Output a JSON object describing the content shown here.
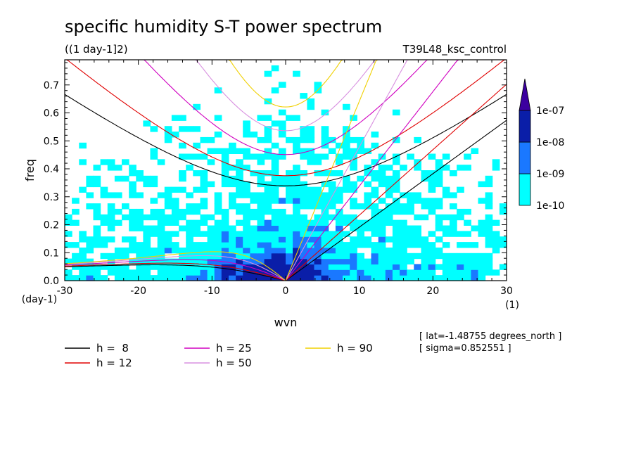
{
  "chart_data": {
    "type": "heatmap",
    "title": "specific humidity S-T power spectrum",
    "units": "((1 day-1]2)",
    "run": "T39L48_ksc_control",
    "xlabel": "wvn",
    "ylabel": "freq",
    "x_unit": "(1)",
    "y_unit": "(day-1)",
    "xlim": [
      -30,
      30
    ],
    "ylim": [
      0,
      0.79
    ],
    "x_ticks": [
      -30,
      -20,
      -10,
      0,
      10,
      20,
      30
    ],
    "x_tick_labels": [
      "-30",
      "-20",
      "-10",
      "0",
      "10",
      "20",
      "30"
    ],
    "y_ticks": [
      0,
      0.1,
      0.2,
      0.3,
      0.4,
      0.5,
      0.6,
      0.7
    ],
    "y_tick_labels": [
      "0.0",
      "0.1",
      "0.2",
      "0.3",
      "0.4",
      "0.5",
      "0.6",
      "0.7"
    ],
    "levels": [
      "1e-10",
      "1e-09",
      "1e-08",
      "1e-07"
    ],
    "level_colors": [
      "#00ffff",
      "#1a78ff",
      "#0a1ea8",
      "#3c00a0"
    ],
    "background_field": {
      "min_class": 0,
      "max_class": 3
    },
    "dispersion_curves": [
      {
        "label": "h =  8",
        "h": 8,
        "color": "#000000"
      },
      {
        "label": "h = 12",
        "h": 12,
        "color": "#e00000"
      },
      {
        "label": "h = 25",
        "h": 25,
        "color": "#d000c0"
      },
      {
        "label": "h = 50",
        "h": 50,
        "color": "#d890e0"
      },
      {
        "label": "h = 90",
        "h": 90,
        "color": "#f0d000"
      }
    ],
    "info_lines": [
      "[ lat=-1.48755 degrees_north ]",
      "[ sigma=0.852551 ]"
    ]
  }
}
